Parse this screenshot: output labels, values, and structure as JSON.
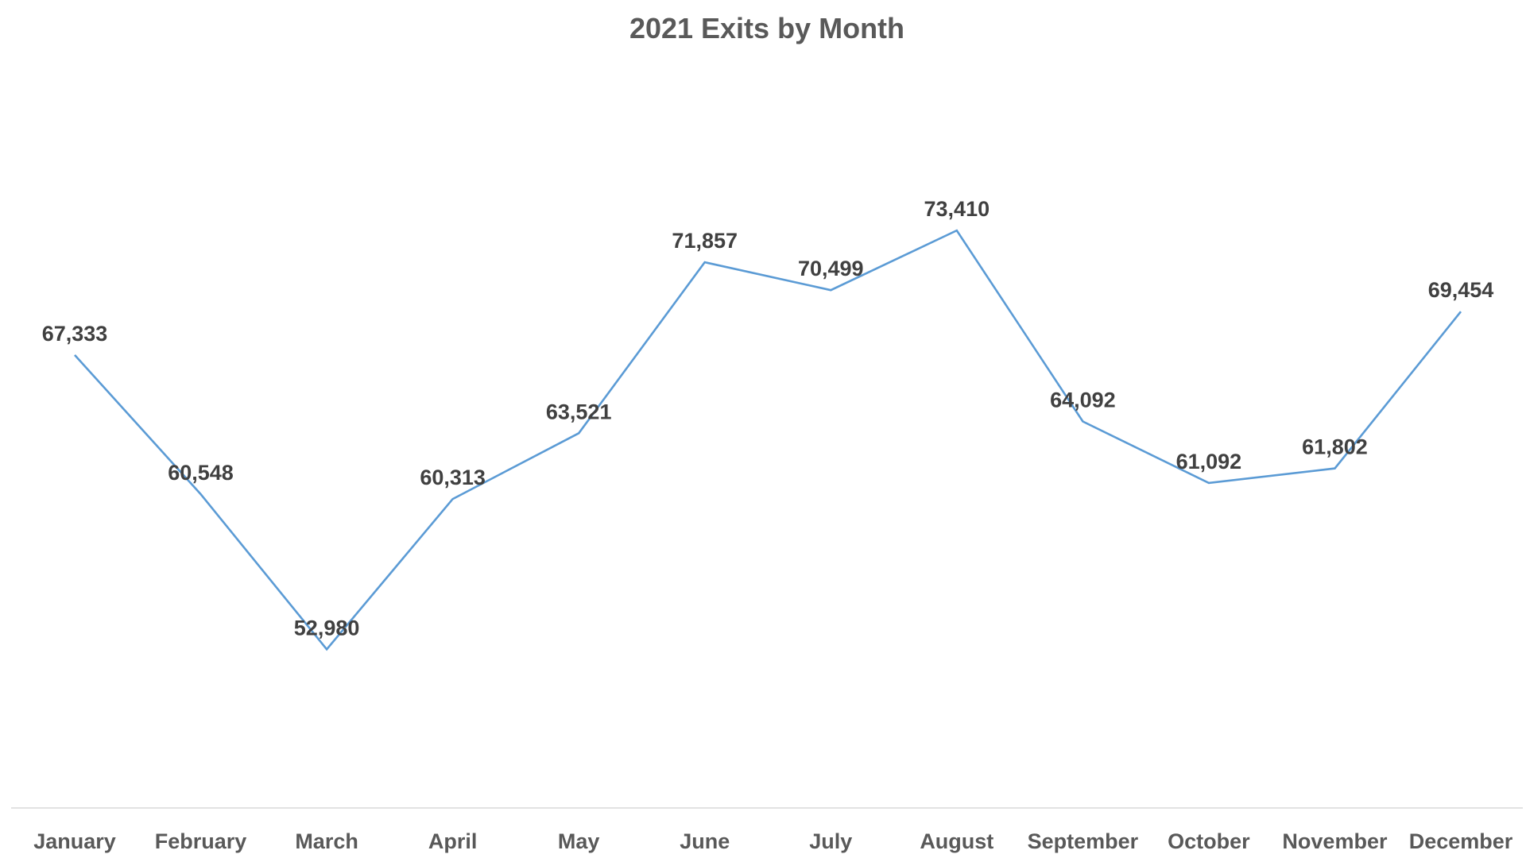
{
  "chart_data": {
    "type": "line",
    "title": "2021 Exits by Month",
    "xlabel": "",
    "ylabel": "",
    "categories": [
      "January",
      "February",
      "March",
      "April",
      "May",
      "June",
      "July",
      "August",
      "September",
      "October",
      "November",
      "December"
    ],
    "series": [
      {
        "values": [
          67333,
          60548,
          52980,
          60313,
          63521,
          71857,
          70499,
          73410,
          64092,
          61092,
          61802,
          69454
        ],
        "labels": [
          "67,333",
          "60,548",
          "52,980",
          "60,313",
          "63,521",
          "71,857",
          "70,499",
          "73,410",
          "64,092",
          "61,092",
          "61,802",
          "69,454"
        ],
        "color": "#5b9bd5"
      }
    ],
    "ylim": [
      49000,
      80000
    ],
    "grid": false,
    "legend": "none",
    "axis_color": "#d9d9d9"
  }
}
